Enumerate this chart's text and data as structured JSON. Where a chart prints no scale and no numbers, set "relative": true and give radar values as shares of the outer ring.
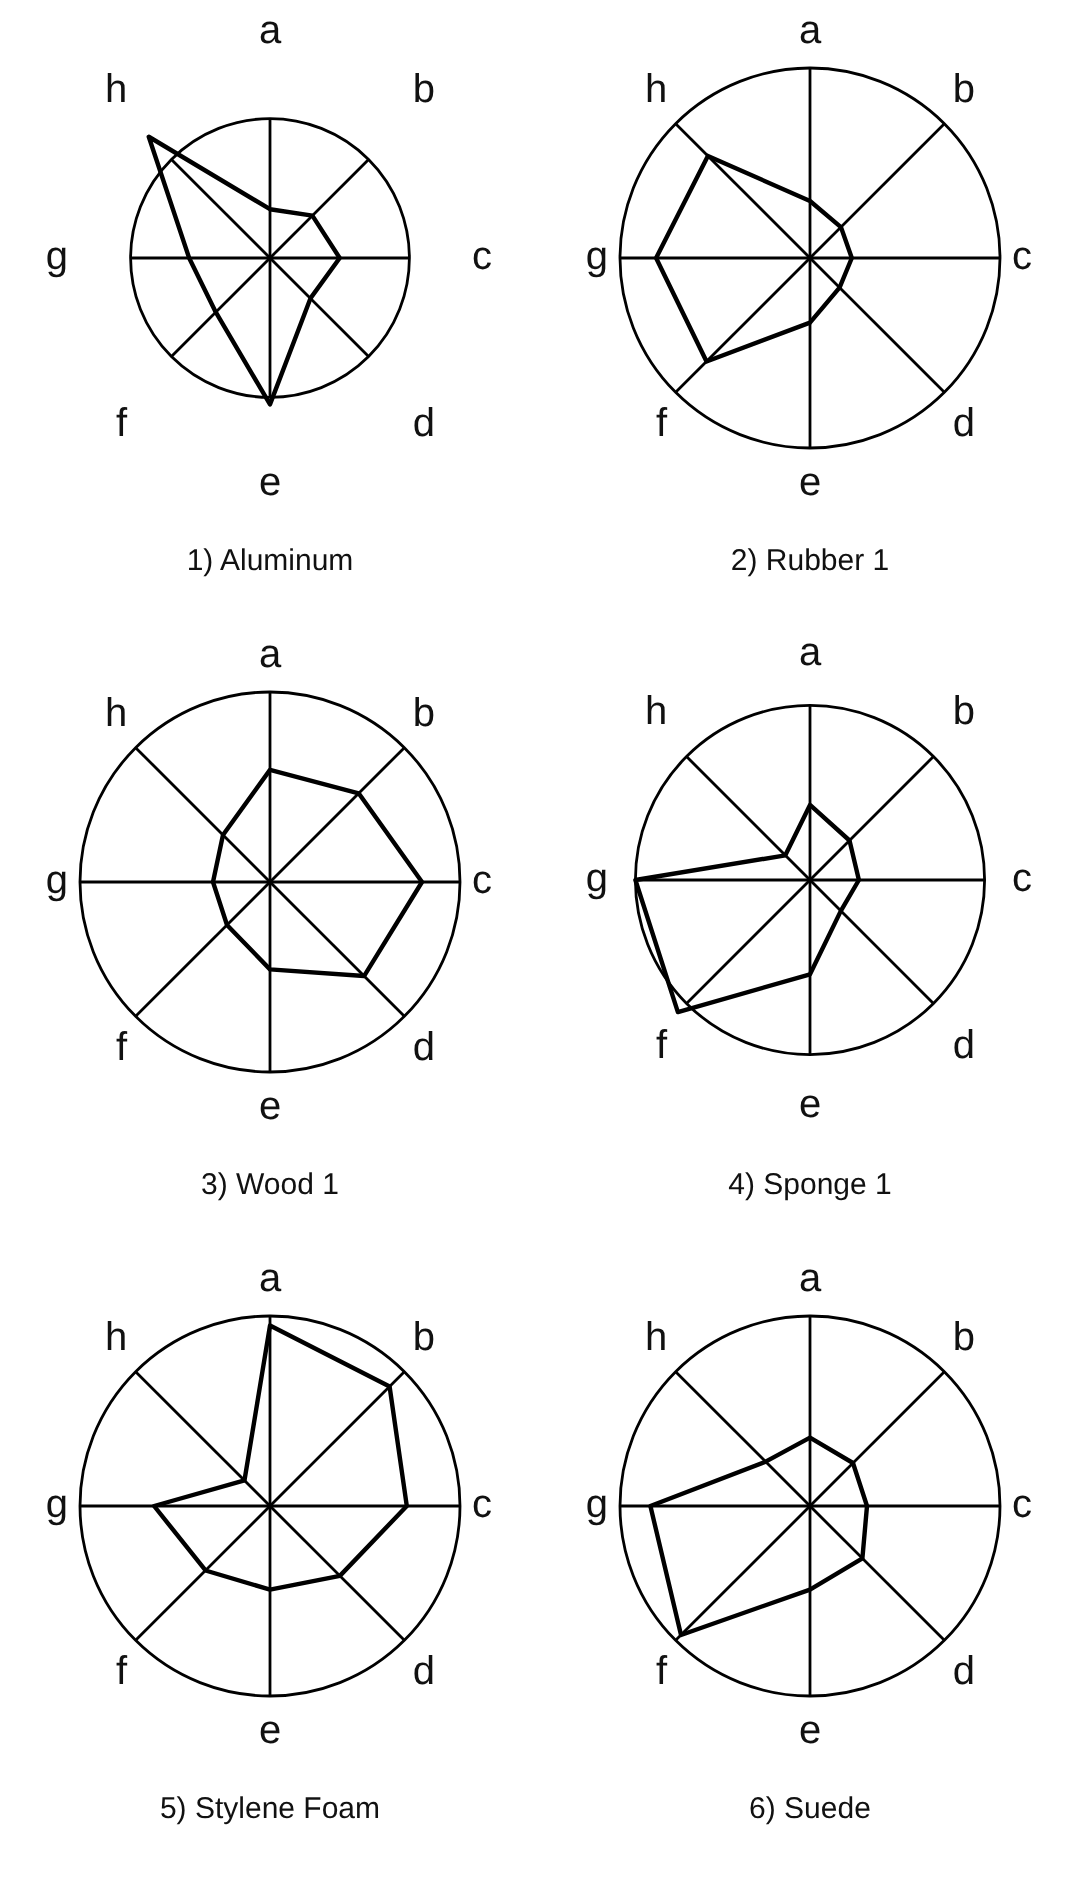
{
  "chart_data": [
    {
      "type": "radar",
      "title": "1) Aluminum",
      "categories": [
        "a",
        "b",
        "c",
        "d",
        "e",
        "f",
        "g",
        "h"
      ],
      "relative": true,
      "grid": true,
      "legend": false,
      "marker": "none",
      "series": [
        {
          "color": "#000000",
          "values": [
            0.35,
            0.43,
            0.5,
            0.41,
            1.05,
            0.55,
            0.58,
            1.23
          ]
        }
      ]
    },
    {
      "type": "radar",
      "title": "2) Rubber 1",
      "categories": [
        "a",
        "b",
        "c",
        "d",
        "e",
        "f",
        "g",
        "h"
      ],
      "relative": true,
      "grid": true,
      "legend": false,
      "marker": "none",
      "series": [
        {
          "color": "#000000",
          "values": [
            0.3,
            0.23,
            0.22,
            0.22,
            0.34,
            0.77,
            0.81,
            0.76
          ]
        }
      ]
    },
    {
      "type": "radar",
      "title": "3) Wood 1",
      "categories": [
        "a",
        "b",
        "c",
        "d",
        "e",
        "f",
        "g",
        "h"
      ],
      "relative": true,
      "grid": true,
      "legend": false,
      "marker": "none",
      "series": [
        {
          "color": "#000000",
          "values": [
            0.59,
            0.66,
            0.8,
            0.7,
            0.46,
            0.32,
            0.3,
            0.35
          ]
        }
      ]
    },
    {
      "type": "radar",
      "title": "4) Sponge 1",
      "categories": [
        "a",
        "b",
        "c",
        "d",
        "e",
        "f",
        "g",
        "h"
      ],
      "relative": true,
      "grid": true,
      "legend": false,
      "marker": "none",
      "series": [
        {
          "color": "#000000",
          "values": [
            0.43,
            0.32,
            0.28,
            0.25,
            0.54,
            1.07,
            1.0,
            0.2
          ]
        }
      ]
    },
    {
      "type": "radar",
      "title": "5) Stylene Foam",
      "categories": [
        "a",
        "b",
        "c",
        "d",
        "e",
        "f",
        "g",
        "h"
      ],
      "relative": true,
      "grid": true,
      "legend": false,
      "marker": "none",
      "series": [
        {
          "color": "#000000",
          "values": [
            0.95,
            0.89,
            0.72,
            0.52,
            0.44,
            0.48,
            0.61,
            0.19
          ]
        }
      ]
    },
    {
      "type": "radar",
      "title": "6) Suede",
      "categories": [
        "a",
        "b",
        "c",
        "d",
        "e",
        "f",
        "g",
        "h"
      ],
      "relative": true,
      "grid": true,
      "legend": false,
      "marker": "none",
      "series": [
        {
          "color": "#000000",
          "values": [
            0.36,
            0.32,
            0.3,
            0.39,
            0.44,
            0.96,
            0.84,
            0.33
          ]
        }
      ]
    }
  ]
}
